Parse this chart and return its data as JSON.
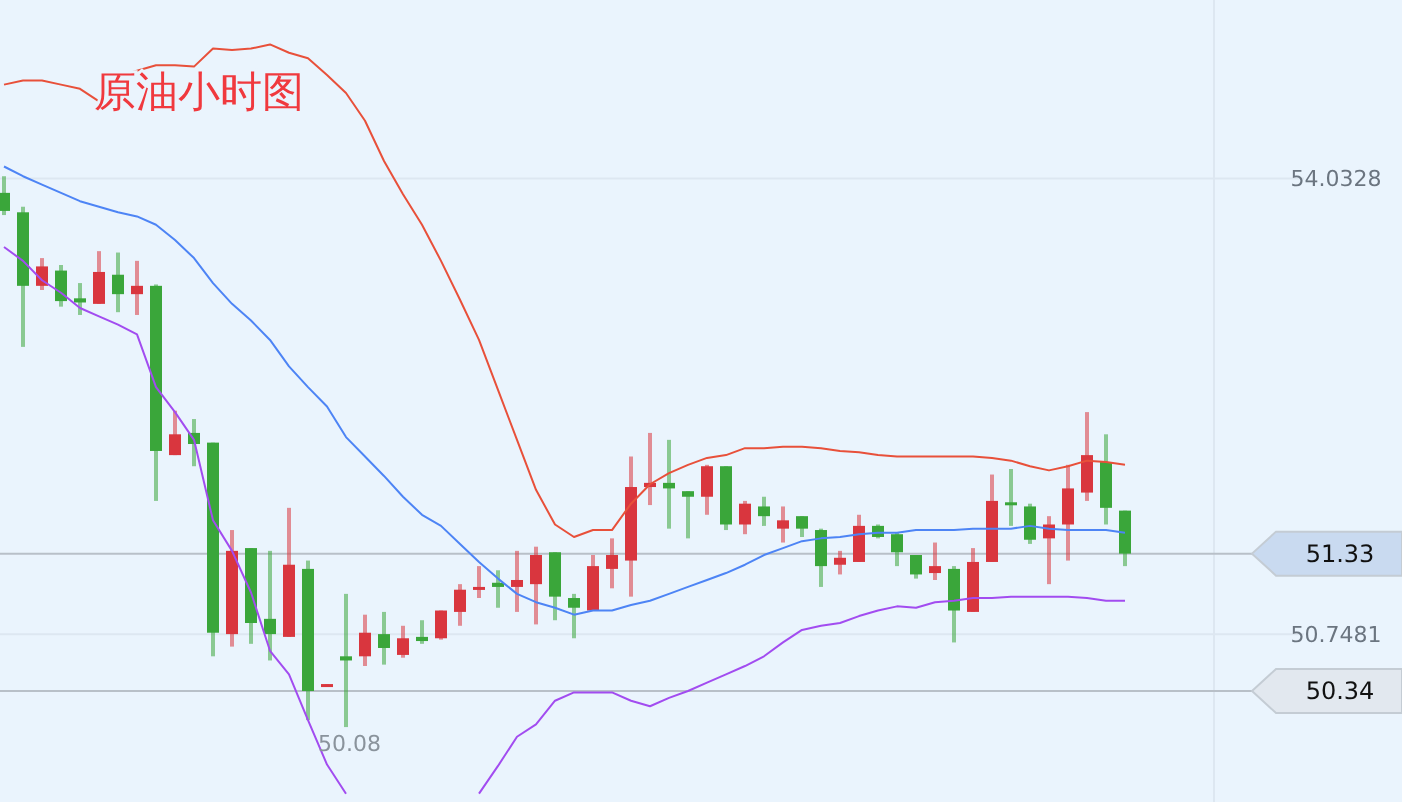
{
  "chart_data": {
    "type": "candlestick",
    "title": "原油小时图",
    "categories": [
      null,
      null,
      null,
      null,
      null,
      null,
      null,
      null,
      null,
      null,
      null,
      null,
      null,
      null,
      null,
      null,
      null,
      null,
      null,
      null,
      null,
      null,
      null,
      null,
      null,
      null,
      null,
      null,
      null,
      null,
      null,
      null,
      null,
      null,
      null,
      null,
      null,
      null,
      null,
      null,
      null,
      null,
      null,
      null,
      null,
      null,
      null,
      null,
      null,
      null,
      null,
      null,
      null,
      null,
      null,
      null,
      null,
      null,
      null,
      null
    ],
    "ohlc": [
      [
        53.93,
        54.05,
        53.77,
        53.8
      ],
      [
        53.79,
        53.83,
        52.82,
        53.26
      ],
      [
        53.26,
        53.46,
        53.23,
        53.4
      ],
      [
        53.37,
        53.41,
        53.11,
        53.15
      ],
      [
        53.17,
        53.28,
        53.05,
        53.14
      ],
      [
        53.13,
        53.51,
        53.13,
        53.36
      ],
      [
        53.34,
        53.5,
        53.07,
        53.2
      ],
      [
        53.2,
        53.44,
        53.05,
        53.26
      ],
      [
        53.26,
        53.27,
        51.71,
        52.07
      ],
      [
        52.04,
        52.36,
        52.04,
        52.19
      ],
      [
        52.2,
        52.3,
        51.96,
        52.12
      ],
      [
        52.13,
        52.13,
        50.59,
        50.76
      ],
      [
        50.75,
        51.5,
        50.66,
        51.35
      ],
      [
        51.37,
        51.37,
        50.68,
        50.83
      ],
      [
        50.86,
        51.35,
        50.56,
        50.75
      ],
      [
        50.73,
        51.66,
        50.73,
        51.25
      ],
      [
        51.22,
        51.28,
        50.13,
        50.34
      ],
      [
        50.37,
        50.39,
        50.37,
        50.39
      ],
      [
        50.59,
        51.04,
        50.08,
        50.56
      ],
      [
        50.59,
        50.89,
        50.52,
        50.76
      ],
      [
        50.75,
        50.91,
        50.53,
        50.65
      ],
      [
        50.6,
        50.81,
        50.58,
        50.72
      ],
      [
        50.73,
        50.85,
        50.68,
        50.7
      ],
      [
        50.72,
        50.92,
        50.71,
        50.92
      ],
      [
        50.91,
        51.11,
        50.81,
        51.07
      ],
      [
        51.07,
        51.24,
        51.01,
        51.09
      ],
      [
        51.12,
        51.21,
        50.94,
        51.09
      ],
      [
        51.09,
        51.35,
        50.91,
        51.14
      ],
      [
        51.11,
        51.38,
        50.82,
        51.32
      ],
      [
        51.34,
        51.34,
        50.85,
        51.02
      ],
      [
        51.01,
        51.04,
        50.72,
        50.94
      ],
      [
        50.92,
        51.32,
        50.92,
        51.24
      ],
      [
        51.22,
        51.44,
        51.08,
        51.32
      ],
      [
        51.28,
        52.03,
        51.02,
        51.81
      ],
      [
        51.81,
        52.2,
        51.68,
        51.84
      ],
      [
        51.84,
        52.15,
        51.51,
        51.8
      ],
      [
        51.78,
        51.78,
        51.44,
        51.74
      ],
      [
        51.74,
        51.97,
        51.61,
        51.96
      ],
      [
        51.96,
        51.96,
        51.5,
        51.54
      ],
      [
        51.54,
        51.71,
        51.47,
        51.69
      ],
      [
        51.67,
        51.74,
        51.53,
        51.6
      ],
      [
        51.51,
        51.67,
        51.41,
        51.57
      ],
      [
        51.6,
        51.6,
        51.45,
        51.51
      ],
      [
        51.5,
        51.51,
        51.09,
        51.24
      ],
      [
        51.25,
        51.35,
        51.18,
        51.3
      ],
      [
        51.27,
        51.61,
        51.27,
        51.53
      ],
      [
        51.53,
        51.54,
        51.44,
        51.45
      ],
      [
        51.47,
        51.48,
        51.24,
        51.34
      ],
      [
        51.32,
        51.32,
        51.15,
        51.18
      ],
      [
        51.19,
        51.41,
        51.14,
        51.24
      ],
      [
        51.22,
        51.24,
        50.69,
        50.92
      ],
      [
        50.91,
        51.37,
        50.91,
        51.27
      ],
      [
        51.27,
        51.9,
        51.27,
        51.71
      ],
      [
        51.7,
        51.94,
        51.53,
        51.69
      ],
      [
        51.67,
        51.69,
        51.4,
        51.43
      ],
      [
        51.44,
        51.6,
        51.11,
        51.54
      ],
      [
        51.54,
        51.97,
        51.28,
        51.8
      ],
      [
        51.77,
        52.35,
        51.71,
        52.04
      ],
      [
        51.99,
        52.19,
        51.54,
        51.66
      ],
      [
        51.64,
        51.64,
        51.24,
        51.33
      ]
    ],
    "colors": [
      "#3aa63a",
      "#3aa63a",
      "#d9363e",
      "#3aa63a",
      "#3aa63a",
      "#d9363e",
      "#3aa63a",
      "#d9363e",
      "#3aa63a",
      "#d9363e",
      "#3aa63a",
      "#3aa63a",
      "#d9363e",
      "#3aa63a",
      "#3aa63a",
      "#d9363e",
      "#3aa63a",
      "#d9363e",
      "#3aa63a",
      "#d9363e",
      "#3aa63a",
      "#d9363e",
      "#3aa63a",
      "#d9363e",
      "#d9363e",
      "#d9363e",
      "#3aa63a",
      "#d9363e",
      "#d9363e",
      "#3aa63a",
      "#3aa63a",
      "#d9363e",
      "#d9363e",
      "#d9363e",
      "#d9363e",
      "#3aa63a",
      "#3aa63a",
      "#d9363e",
      "#3aa63a",
      "#d9363e",
      "#3aa63a",
      "#d9363e",
      "#3aa63a",
      "#3aa63a",
      "#d9363e",
      "#d9363e",
      "#3aa63a",
      "#3aa63a",
      "#3aa63a",
      "#d9363e",
      "#3aa63a",
      "#d9363e",
      "#d9363e",
      "#3aa63a",
      "#3aa63a",
      "#d9363e",
      "#d9363e",
      "#d9363e",
      "#3aa63a",
      "#3aa63a"
    ],
    "series": [
      {
        "type": "line",
        "color": "#e8503a",
        "values": [
          54.71,
          54.74,
          54.74,
          54.71,
          54.68,
          54.59,
          54.77,
          54.81,
          54.85,
          54.85,
          54.84,
          54.97,
          54.96,
          54.97,
          55.0,
          54.94,
          54.9,
          54.78,
          54.65,
          54.45,
          54.16,
          53.92,
          53.7,
          53.44,
          53.16,
          52.87,
          52.51,
          52.15,
          51.79,
          51.54,
          51.45,
          51.5,
          51.5,
          51.69,
          51.83,
          51.91,
          51.97,
          52.02,
          52.04,
          52.09,
          52.09,
          52.1,
          52.1,
          52.09,
          52.07,
          52.06,
          52.04,
          52.03,
          52.03,
          52.03,
          52.03,
          52.03,
          52.02,
          52.0,
          51.96,
          51.93,
          51.96,
          52.0,
          51.99,
          51.97
        ]
      },
      {
        "type": "line",
        "color": "#4d84f5",
        "values": [
          54.12,
          54.05,
          53.99,
          53.93,
          53.87,
          53.83,
          53.79,
          53.76,
          53.7,
          53.59,
          53.46,
          53.28,
          53.13,
          53.01,
          52.87,
          52.68,
          52.53,
          52.39,
          52.17,
          52.03,
          51.89,
          51.74,
          51.61,
          51.53,
          51.4,
          51.27,
          51.15,
          51.04,
          50.98,
          50.94,
          50.89,
          50.92,
          50.92,
          50.96,
          50.99,
          51.04,
          51.09,
          51.14,
          51.19,
          51.25,
          51.32,
          51.37,
          51.42,
          51.44,
          51.45,
          51.47,
          51.48,
          51.48,
          51.5,
          51.5,
          51.5,
          51.51,
          51.51,
          51.51,
          51.53,
          51.51,
          51.5,
          51.5,
          51.5,
          51.48
        ]
      },
      {
        "type": "line",
        "color": "#a24cf0",
        "values": [
          53.54,
          53.44,
          53.3,
          53.21,
          53.1,
          53.04,
          52.98,
          52.91,
          52.53,
          52.35,
          52.15,
          51.57,
          51.35,
          51.05,
          50.63,
          50.46,
          50.13,
          49.81,
          49.6,
          null,
          null,
          null,
          null,
          null,
          null,
          49.6,
          49.8,
          50.01,
          50.1,
          50.27,
          50.33,
          50.33,
          50.33,
          50.27,
          50.23,
          50.29,
          50.34,
          50.4,
          50.46,
          50.52,
          50.59,
          50.69,
          50.78,
          50.81,
          50.83,
          50.88,
          50.92,
          50.95,
          50.94,
          50.98,
          50.99,
          51.01,
          51.01,
          51.02,
          51.02,
          51.02,
          51.02,
          51.01,
          50.99,
          50.99
        ]
      }
    ],
    "ylim": [
      49.54,
      55.32
    ],
    "yticks": [
      54.0328,
      50.7481
    ],
    "grid": "y",
    "ref_lines": [
      {
        "axis": "y",
        "value": 51.33,
        "label": "51.33",
        "color": "#b8c0c8"
      },
      {
        "axis": "y",
        "value": 50.34,
        "label": "50.34",
        "color": "#b8c0c8"
      }
    ],
    "annotations": [
      {
        "text": "50.08",
        "y": 50.08
      }
    ]
  }
}
